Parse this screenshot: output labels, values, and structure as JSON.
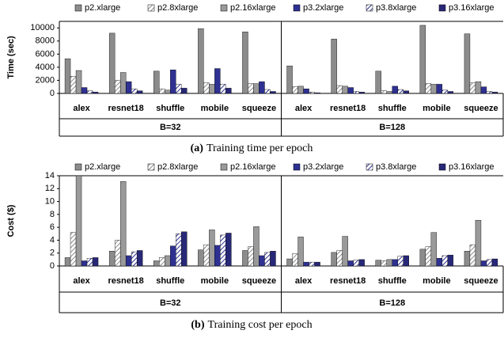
{
  "chart_data": [
    {
      "type": "bar",
      "caption": {
        "label": "(a)",
        "text": "Training time per epoch"
      },
      "y_label": "Time (sec)",
      "categories": [
        "alex",
        "resnet18",
        "shuffle",
        "mobile",
        "squeeze",
        "alex",
        "resnet18",
        "shuffle",
        "mobile",
        "squeeze"
      ],
      "groups": [
        "B=32",
        "B=128"
      ],
      "ylim": [
        0,
        11000
      ],
      "yticks": [
        0,
        2000,
        4000,
        6000,
        8000,
        10000
      ],
      "legend": "top",
      "series": [
        {
          "name": "p2.xlarge",
          "color": "#8c8c8c",
          "hatch": false,
          "values": [
            5300,
            9200,
            3400,
            9900,
            9400,
            4200,
            8300,
            3400,
            10400,
            9100
          ]
        },
        {
          "name": "p2.8xlarge",
          "color": "#8c8c8c",
          "hatch": true,
          "values": [
            2600,
            2000,
            700,
            1600,
            1500,
            1000,
            1200,
            400,
            1500,
            1600
          ]
        },
        {
          "name": "p2.16xlarge",
          "color": "#9a9a9a",
          "hatch": false,
          "values": [
            3500,
            3200,
            500,
            1400,
            1500,
            1100,
            1100,
            300,
            1400,
            1800
          ]
        },
        {
          "name": "p3.2xlarge",
          "color": "#2e3192",
          "hatch": false,
          "values": [
            900,
            1800,
            3600,
            3800,
            1800,
            700,
            900,
            1100,
            1400,
            1000
          ]
        },
        {
          "name": "p3.8xlarge",
          "color": "#2e3192",
          "hatch": true,
          "values": [
            400,
            700,
            1400,
            1400,
            600,
            200,
            300,
            600,
            500,
            300
          ]
        },
        {
          "name": "p3.16xlarge",
          "color": "#282878",
          "hatch": false,
          "values": [
            200,
            400,
            800,
            800,
            300,
            100,
            200,
            400,
            300,
            200
          ]
        }
      ]
    },
    {
      "type": "bar",
      "caption": {
        "label": "(b)",
        "text": "Training cost per epoch"
      },
      "y_label": "Cost ($)",
      "categories": [
        "alex",
        "resnet18",
        "shuffle",
        "mobile",
        "squeeze",
        "alex",
        "resnet18",
        "shuffle",
        "mobile",
        "squeeze"
      ],
      "groups": [
        "B=32",
        "B=128"
      ],
      "ylim": [
        0,
        14
      ],
      "yticks": [
        0,
        2,
        4,
        6,
        8,
        10,
        12,
        14
      ],
      "legend": "top",
      "series": [
        {
          "name": "p2.xlarge",
          "color": "#8c8c8c",
          "hatch": false,
          "values": [
            1.3,
            2.3,
            0.8,
            2.5,
            2.4,
            1.1,
            2.1,
            0.9,
            2.6,
            2.3
          ]
        },
        {
          "name": "p2.8xlarge",
          "color": "#8c8c8c",
          "hatch": true,
          "values": [
            5.2,
            4.0,
            1.3,
            3.3,
            3.0,
            1.9,
            2.4,
            0.8,
            3.0,
            3.3
          ]
        },
        {
          "name": "p2.16xlarge",
          "color": "#9a9a9a",
          "hatch": false,
          "values": [
            14,
            13.1,
            1.6,
            5.6,
            6.1,
            4.5,
            4.6,
            1.0,
            5.2,
            7.1
          ]
        },
        {
          "name": "p3.2xlarge",
          "color": "#2e3192",
          "hatch": false,
          "values": [
            0.8,
            1.6,
            3.1,
            3.2,
            1.6,
            0.6,
            0.8,
            1.0,
            1.2,
            0.8
          ]
        },
        {
          "name": "p3.8xlarge",
          "color": "#2e3192",
          "hatch": true,
          "values": [
            1.2,
            2.2,
            5.0,
            4.8,
            2.1,
            0.6,
            0.9,
            1.5,
            1.6,
            1.0
          ]
        },
        {
          "name": "p3.16xlarge",
          "color": "#282878",
          "hatch": false,
          "values": [
            1.3,
            2.4,
            5.3,
            5.1,
            2.3,
            0.6,
            1.0,
            1.6,
            1.7,
            1.1
          ]
        }
      ]
    }
  ]
}
